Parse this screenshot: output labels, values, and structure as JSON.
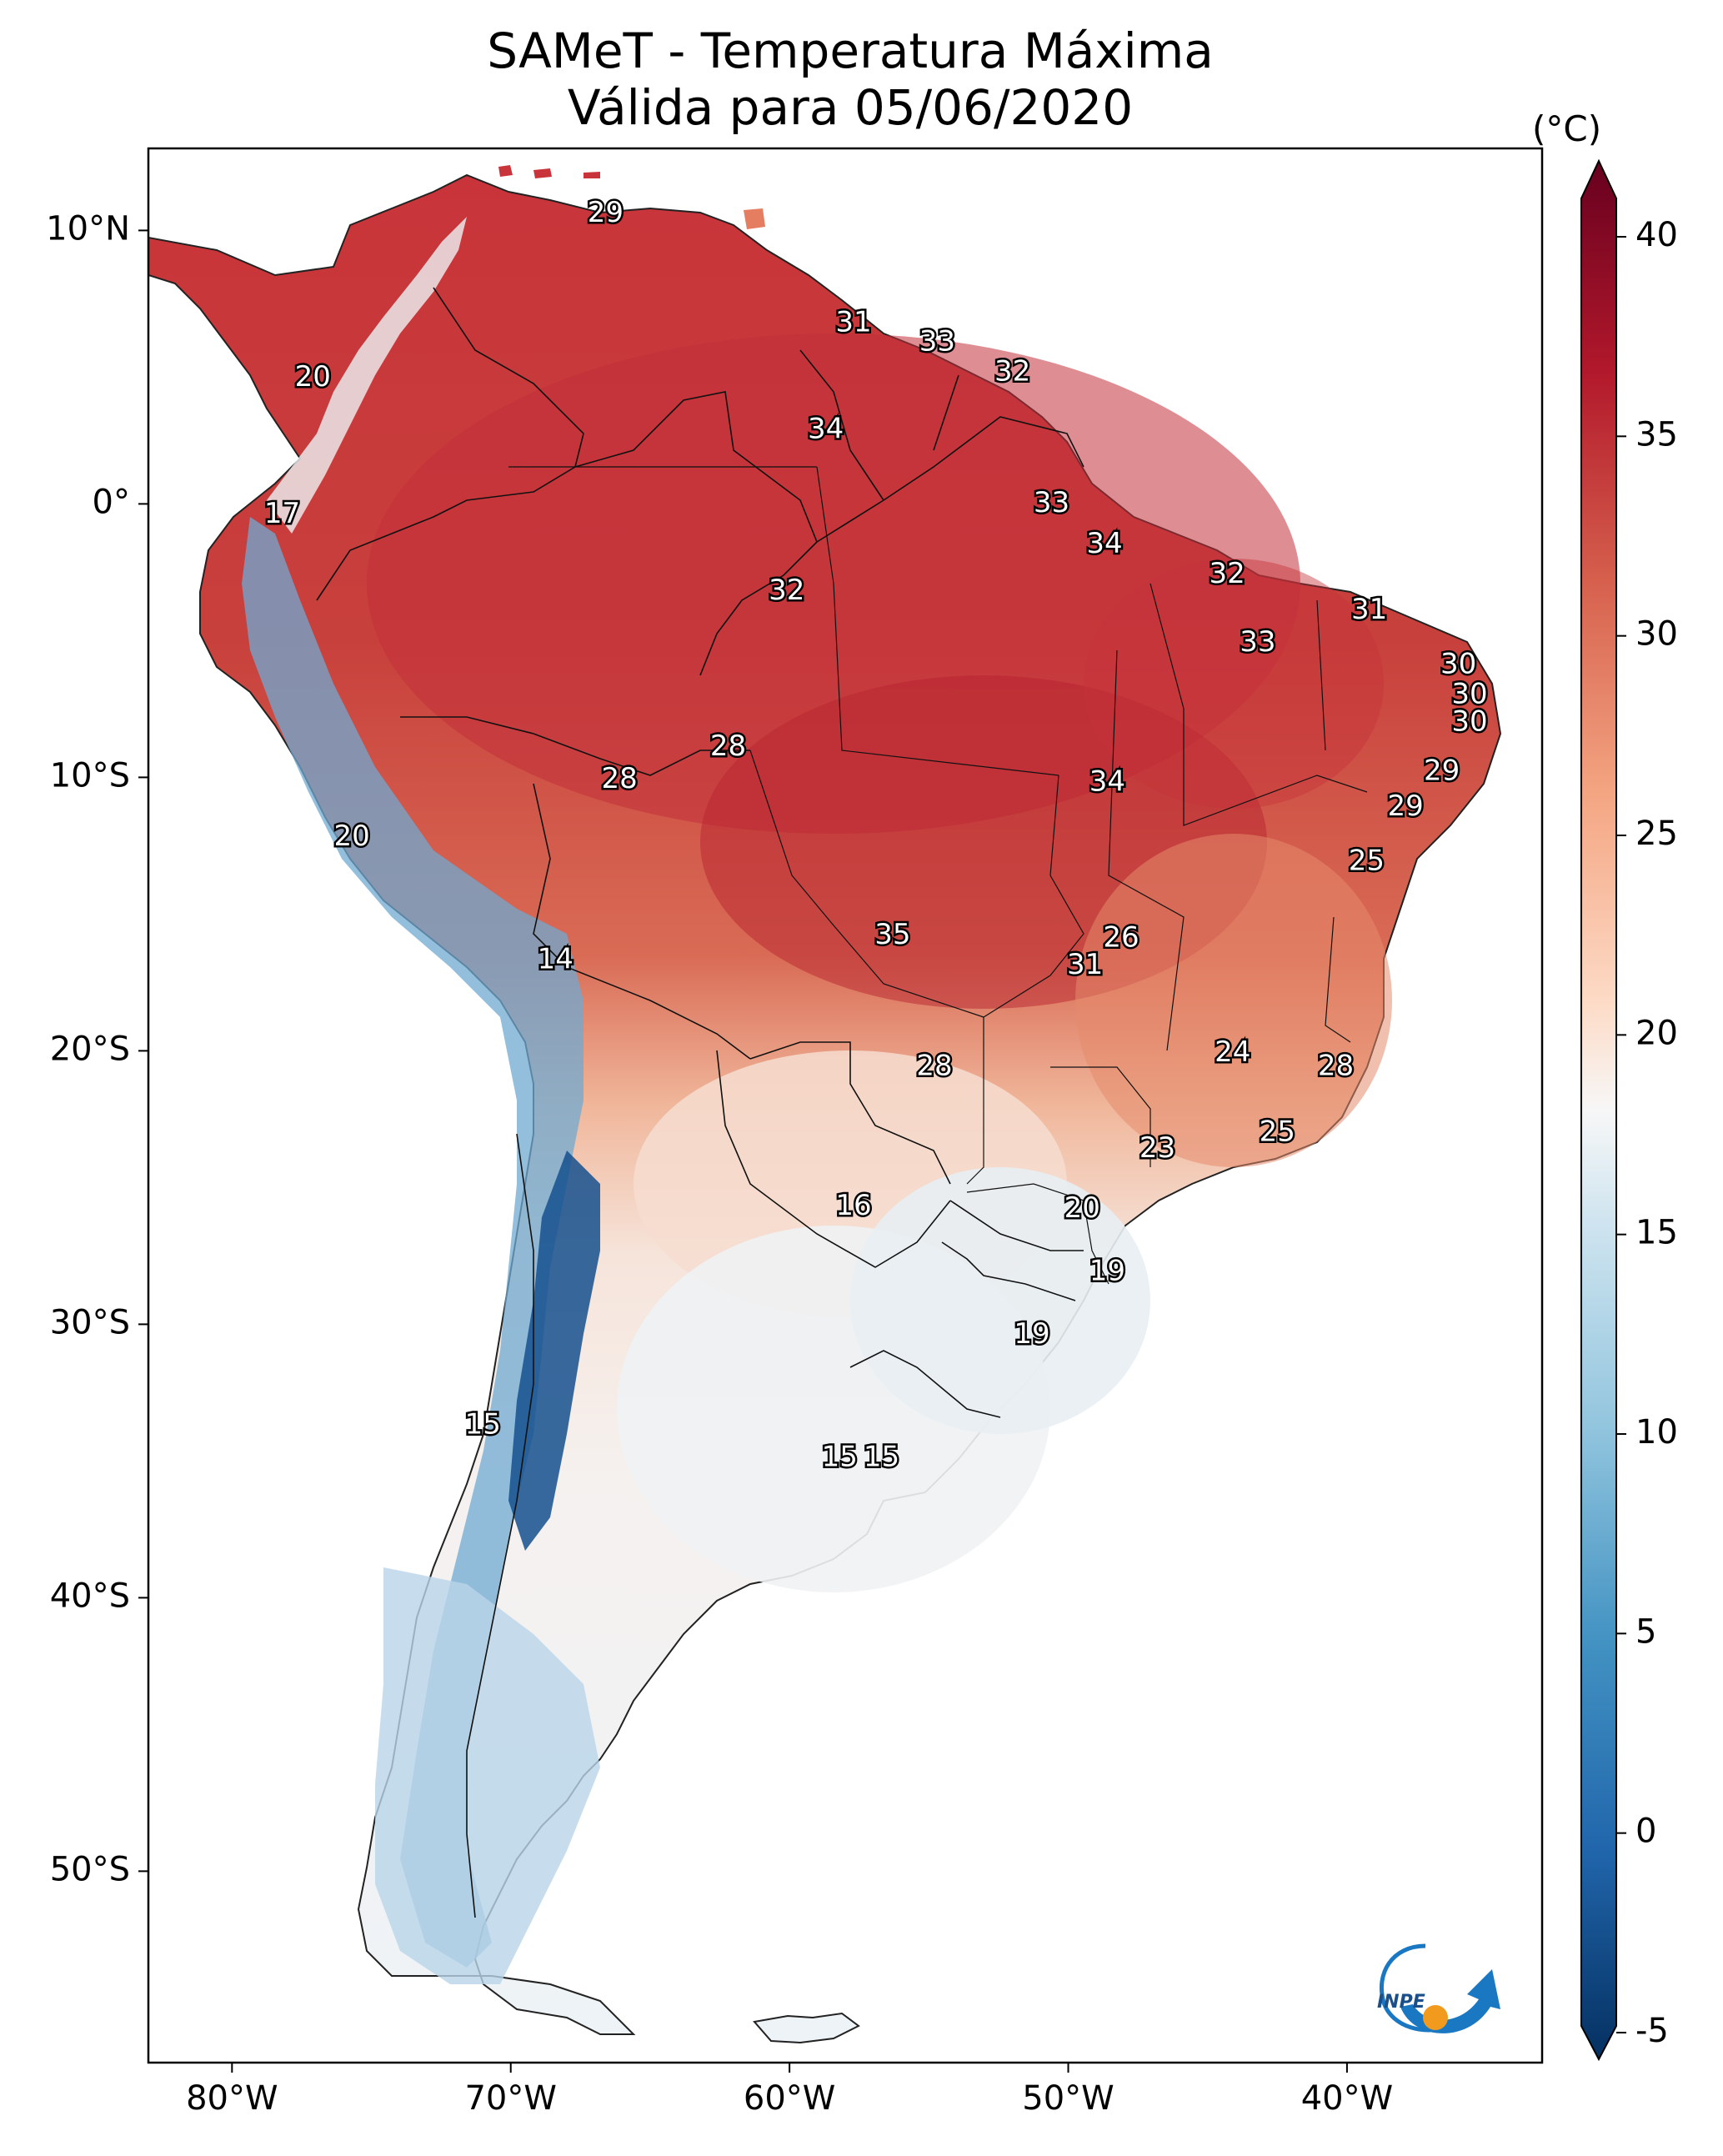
{
  "title": "SAMeT - Temperatura Máxima",
  "subtitle": "Válida para 05/06/2020",
  "colorbar": {
    "unit": "(°C)",
    "ticks": [
      "40",
      "35",
      "30",
      "25",
      "20",
      "15",
      "10",
      "5",
      "0",
      "-5"
    ],
    "range": [
      -5,
      40
    ],
    "extend": "both",
    "colormap": "RdBu_r"
  },
  "axes": {
    "lat_labels": [
      "10°N",
      "0°",
      "10°S",
      "20°S",
      "30°S",
      "40°S",
      "50°S"
    ],
    "lon_labels": [
      "80°W",
      "70°W",
      "60°W",
      "50°W",
      "40°W"
    ],
    "lon_range": [
      -83,
      -33
    ],
    "lat_range": [
      13,
      -57
    ]
  },
  "contour_labels": [
    {
      "text": "29",
      "lon": -66.6,
      "lat": 10.6
    },
    {
      "text": "20",
      "lon": -77.1,
      "lat": 4.6
    },
    {
      "text": "31",
      "lon": -57.7,
      "lat": 6.6
    },
    {
      "text": "33",
      "lon": -54.7,
      "lat": 5.9
    },
    {
      "text": "32",
      "lon": -52.0,
      "lat": 4.8
    },
    {
      "text": "34",
      "lon": -58.7,
      "lat": 2.7
    },
    {
      "text": "17",
      "lon": -78.2,
      "lat": -0.4
    },
    {
      "text": "33",
      "lon": -50.6,
      "lat": 0.0
    },
    {
      "text": "34",
      "lon": -48.7,
      "lat": -1.5
    },
    {
      "text": "32",
      "lon": -44.3,
      "lat": -2.6
    },
    {
      "text": "32",
      "lon": -60.1,
      "lat": -3.2
    },
    {
      "text": "31",
      "lon": -39.2,
      "lat": -3.9
    },
    {
      "text": "33",
      "lon": -43.2,
      "lat": -5.1
    },
    {
      "text": "30",
      "lon": -36.0,
      "lat": -5.9
    },
    {
      "text": "30",
      "lon": -35.6,
      "lat": -7.0
    },
    {
      "text": "30",
      "lon": -35.6,
      "lat": -8.0
    },
    {
      "text": "28",
      "lon": -62.2,
      "lat": -8.9
    },
    {
      "text": "28",
      "lon": -66.1,
      "lat": -10.1
    },
    {
      "text": "34",
      "lon": -48.6,
      "lat": -10.2
    },
    {
      "text": "29",
      "lon": -36.6,
      "lat": -9.8
    },
    {
      "text": "29",
      "lon": -37.9,
      "lat": -11.1
    },
    {
      "text": "20",
      "lon": -75.7,
      "lat": -12.2
    },
    {
      "text": "25",
      "lon": -39.3,
      "lat": -13.1
    },
    {
      "text": "35",
      "lon": -56.3,
      "lat": -15.8
    },
    {
      "text": "26",
      "lon": -48.1,
      "lat": -15.9
    },
    {
      "text": "31",
      "lon": -49.4,
      "lat": -16.9
    },
    {
      "text": "14",
      "lon": -68.4,
      "lat": -16.7
    },
    {
      "text": "24",
      "lon": -44.1,
      "lat": -20.1
    },
    {
      "text": "28",
      "lon": -40.4,
      "lat": -20.6
    },
    {
      "text": "28",
      "lon": -54.8,
      "lat": -20.6
    },
    {
      "text": "25",
      "lon": -42.5,
      "lat": -23.0
    },
    {
      "text": "23",
      "lon": -46.8,
      "lat": -23.6
    },
    {
      "text": "16",
      "lon": -57.7,
      "lat": -25.7
    },
    {
      "text": "20",
      "lon": -49.5,
      "lat": -25.8
    },
    {
      "text": "19",
      "lon": -48.6,
      "lat": -28.1
    },
    {
      "text": "19",
      "lon": -51.3,
      "lat": -30.4
    },
    {
      "text": "15",
      "lon": -71.0,
      "lat": -33.7
    },
    {
      "text": "15",
      "lon": -58.2,
      "lat": -34.9
    },
    {
      "text": "15",
      "lon": -56.7,
      "lat": -34.9
    }
  ],
  "logo": {
    "text": "INPE"
  }
}
